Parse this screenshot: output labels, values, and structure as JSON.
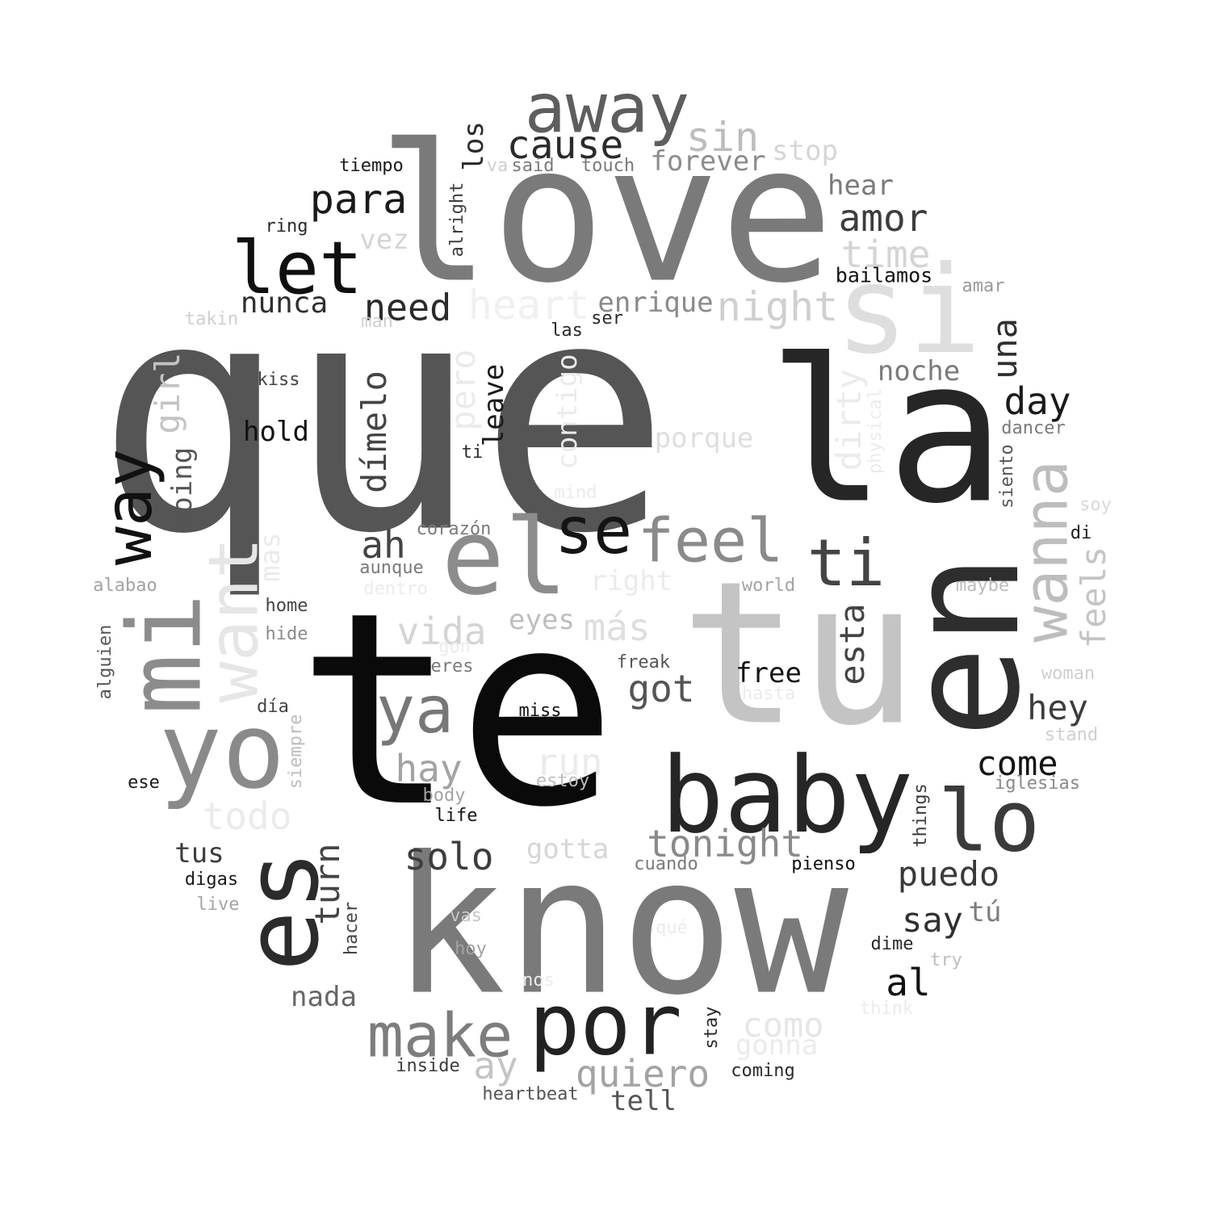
{
  "wordcloud": {
    "words": [
      {
        "text": "que",
        "color": "#555555"
      },
      {
        "text": "la",
        "color": "#262626"
      },
      {
        "text": "te",
        "color": "#0a0a0a"
      },
      {
        "text": "tu",
        "color": "#c4c4c4"
      },
      {
        "text": "know",
        "color": "#7a7a7a"
      },
      {
        "text": "love",
        "color": "#7a7a7a"
      },
      {
        "text": "en",
        "color": "#2e2e2e"
      },
      {
        "text": "si",
        "color": "#dedede"
      },
      {
        "text": "baby",
        "color": "#262626"
      },
      {
        "text": "es",
        "color": "#2b2b2b"
      },
      {
        "text": "yo",
        "color": "#8a8a8a"
      },
      {
        "text": "mi",
        "color": "#8c8c8c"
      },
      {
        "text": "el",
        "color": "#8c8c8c"
      },
      {
        "text": "away",
        "color": "#5e5e5e"
      },
      {
        "text": "por",
        "color": "#222222"
      },
      {
        "text": "let",
        "color": "#0f0f0f"
      },
      {
        "text": "lo",
        "color": "#3a3a3a"
      },
      {
        "text": "want",
        "color": "#e6e6e6"
      },
      {
        "text": "way",
        "color": "#111111"
      },
      {
        "text": "wanna",
        "color": "#bdbdbd"
      },
      {
        "text": "ya",
        "color": "#777777"
      },
      {
        "text": "make",
        "color": "#7d7d7d"
      },
      {
        "text": "se",
        "color": "#141414"
      },
      {
        "text": "feel",
        "color": "#8a8a8a"
      },
      {
        "text": "ti",
        "color": "#444444"
      },
      {
        "text": "para",
        "color": "#1a1a1a"
      },
      {
        "text": "cause",
        "color": "#2a2a2a"
      },
      {
        "text": "sin",
        "color": "#bdbdbd"
      },
      {
        "text": "need",
        "color": "#2a2a2a"
      },
      {
        "text": "nunca",
        "color": "#2f2f2f"
      },
      {
        "text": "heart",
        "color": "#f0f0f0"
      },
      {
        "text": "enrique",
        "color": "#8a8a8a"
      },
      {
        "text": "night",
        "color": "#cfcfcf"
      },
      {
        "text": "amor",
        "color": "#3d3d3d"
      },
      {
        "text": "time",
        "color": "#d4d4d4"
      },
      {
        "text": "forever",
        "color": "#8c8c8c"
      },
      {
        "text": "stop",
        "color": "#d6d6d6"
      },
      {
        "text": "hear",
        "color": "#7a7a7a"
      },
      {
        "text": "bailamos",
        "color": "#111111"
      },
      {
        "text": "amar",
        "color": "#9a9a9a"
      },
      {
        "text": "noche",
        "color": "#7a7a7a"
      },
      {
        "text": "una",
        "color": "#2f2f2f"
      },
      {
        "text": "day",
        "color": "#1a1a1a"
      },
      {
        "text": "dancer",
        "color": "#7a7a7a"
      },
      {
        "text": "siento",
        "color": "#555555"
      },
      {
        "text": "soy",
        "color": "#d9d9d9"
      },
      {
        "text": "di",
        "color": "#1e1e1e"
      },
      {
        "text": "feels",
        "color": "#c4c4c4"
      },
      {
        "text": "maybe",
        "color": "#bdbdbd"
      },
      {
        "text": "woman",
        "color": "#cfcfcf"
      },
      {
        "text": "stand",
        "color": "#cfcfcf"
      },
      {
        "text": "iglesias",
        "color": "#8a8a8a"
      },
      {
        "text": "hey",
        "color": "#3d3d3d"
      },
      {
        "text": "come",
        "color": "#141414"
      },
      {
        "text": "things",
        "color": "#3a3a3a"
      },
      {
        "text": "puedo",
        "color": "#3a3a3a"
      },
      {
        "text": "say",
        "color": "#2f2f2f"
      },
      {
        "text": "tú",
        "color": "#7d7d7d"
      },
      {
        "text": "dime",
        "color": "#2a2a2a"
      },
      {
        "text": "try",
        "color": "#bdbdbd"
      },
      {
        "text": "al",
        "color": "#111111"
      },
      {
        "text": "think",
        "color": "#ebebeb"
      },
      {
        "text": "tonight",
        "color": "#8a8a8a"
      },
      {
        "text": "pienso",
        "color": "#111111"
      },
      {
        "text": "cuando",
        "color": "#7a7a7a"
      },
      {
        "text": "como",
        "color": "#e6e6e6"
      },
      {
        "text": "gonna",
        "color": "#ebebeb"
      },
      {
        "text": "coming",
        "color": "#2a2a2a"
      },
      {
        "text": "stay",
        "color": "#2a2a2a"
      },
      {
        "text": "quiero",
        "color": "#a3a3a3"
      },
      {
        "text": "tell",
        "color": "#555555"
      },
      {
        "text": "heartbeat",
        "color": "#555555"
      },
      {
        "text": "ay",
        "color": "#c4c4c4"
      },
      {
        "text": "inside",
        "color": "#3d3d3d"
      },
      {
        "text": "nada",
        "color": "#666666"
      },
      {
        "text": "nos",
        "color": "#ebebeb"
      },
      {
        "text": "qué",
        "color": "#ebebeb"
      },
      {
        "text": "hoy",
        "color": "#a3a3a3"
      },
      {
        "text": "vas",
        "color": "#c4c4c4"
      },
      {
        "text": "hacer",
        "color": "#444444"
      },
      {
        "text": "turn",
        "color": "#444444"
      },
      {
        "text": "solo",
        "color": "#3d3d3d"
      },
      {
        "text": "gotta",
        "color": "#d6d6d6"
      },
      {
        "text": "estoy",
        "color": "#bdbdbd"
      },
      {
        "text": "body",
        "color": "#a3a3a3"
      },
      {
        "text": "life",
        "color": "#141414"
      },
      {
        "text": "run",
        "color": "#ebebeb"
      },
      {
        "text": "miss",
        "color": "#111111"
      },
      {
        "text": "got",
        "color": "#555555"
      },
      {
        "text": "free",
        "color": "#141414"
      },
      {
        "text": "hasta",
        "color": "#ebebeb"
      },
      {
        "text": "freak",
        "color": "#555555"
      },
      {
        "text": "esta",
        "color": "#444444"
      },
      {
        "text": "world",
        "color": "#a3a3a3"
      },
      {
        "text": "right",
        "color": "#ebebeb"
      },
      {
        "text": "más",
        "color": "#dedede"
      },
      {
        "text": "eyes",
        "color": "#bdbdbd"
      },
      {
        "text": "vida",
        "color": "#d4d4d4"
      },
      {
        "text": "hay",
        "color": "#a3a3a3"
      },
      {
        "text": "eres",
        "color": "#7a7a7a"
      },
      {
        "text": "gon",
        "color": "#ebebeb"
      },
      {
        "text": "ah",
        "color": "#444444"
      },
      {
        "text": "aunque",
        "color": "#7a7a7a"
      },
      {
        "text": "dentro",
        "color": "#ebebeb"
      },
      {
        "text": "corazón",
        "color": "#7a7a7a"
      },
      {
        "text": "mind",
        "color": "#ebebeb"
      },
      {
        "text": "porque",
        "color": "#dedede"
      },
      {
        "text": "dirty",
        "color": "#ebebeb"
      },
      {
        "text": "physical",
        "color": "#ebebeb"
      },
      {
        "text": "dímelo",
        "color": "#444444"
      },
      {
        "text": "pero",
        "color": "#ebebeb"
      },
      {
        "text": "contigo",
        "color": "#ebebeb"
      },
      {
        "text": "leave",
        "color": "#1a1a1a"
      },
      {
        "text": "ti",
        "color": "#2a2a2a"
      },
      {
        "text": "las",
        "color": "#2a2a2a"
      },
      {
        "text": "ser",
        "color": "#2a2a2a"
      },
      {
        "text": "man",
        "color": "#cfcfcf"
      },
      {
        "text": "vez",
        "color": "#d4d4d4"
      },
      {
        "text": "alright",
        "color": "#3d3d3d"
      },
      {
        "text": "los",
        "color": "#2a2a2a"
      },
      {
        "text": "va",
        "color": "#cfcfcf"
      },
      {
        "text": "said",
        "color": "#7a7a7a"
      },
      {
        "text": "touch",
        "color": "#7a7a7a"
      },
      {
        "text": "tiempo",
        "color": "#1a1a1a"
      },
      {
        "text": "ring",
        "color": "#2a2a2a"
      },
      {
        "text": "takin",
        "color": "#cfcfcf"
      },
      {
        "text": "kiss",
        "color": "#444444"
      },
      {
        "text": "hold",
        "color": "#111111"
      },
      {
        "text": "girl",
        "color": "#c4c4c4"
      },
      {
        "text": "going",
        "color": "#555555"
      },
      {
        "text": "mas",
        "color": "#ebebeb"
      },
      {
        "text": "alabao",
        "color": "#a3a3a3"
      },
      {
        "text": "home",
        "color": "#444444"
      },
      {
        "text": "hide",
        "color": "#8a8a8a"
      },
      {
        "text": "alguien",
        "color": "#555555"
      },
      {
        "text": "día",
        "color": "#444444"
      },
      {
        "text": "siempre",
        "color": "#bdbdbd"
      },
      {
        "text": "ese",
        "color": "#1a1a1a"
      },
      {
        "text": "todo",
        "color": "#ebebeb"
      },
      {
        "text": "tus",
        "color": "#3d3d3d"
      },
      {
        "text": "digas",
        "color": "#1a1a1a"
      },
      {
        "text": "live",
        "color": "#a3a3a3"
      }
    ]
  }
}
